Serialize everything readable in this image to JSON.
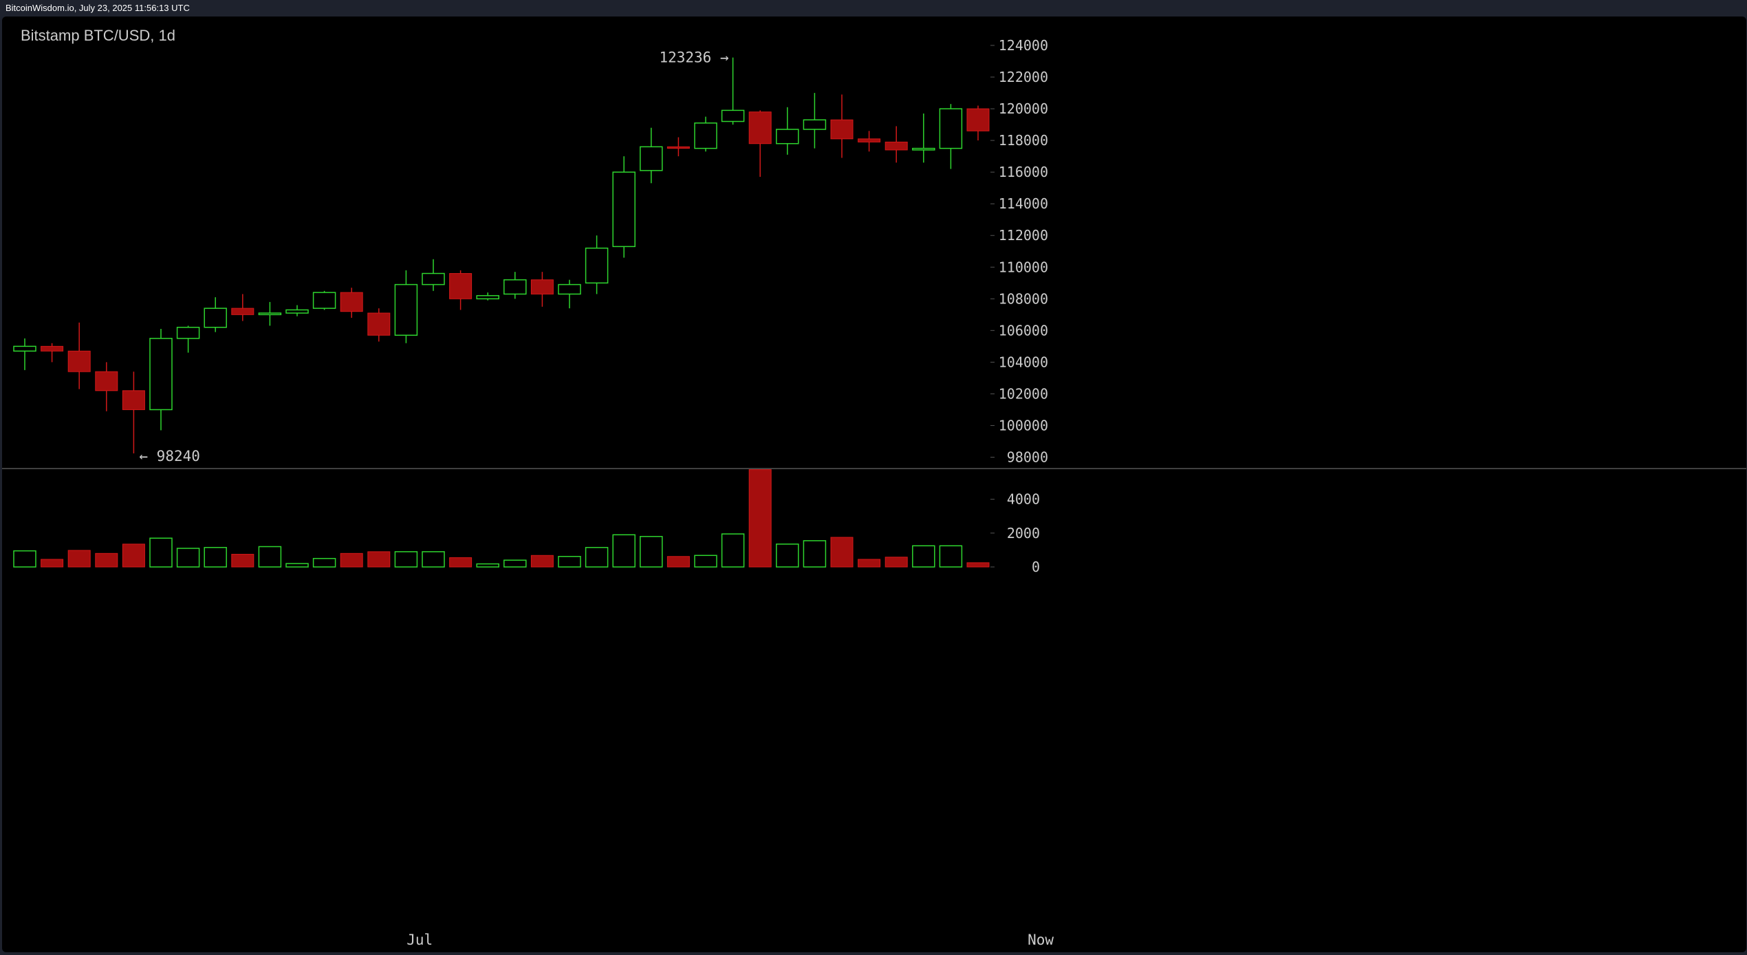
{
  "header": {
    "source": "BitcoinWisdom.io, July 23, 2025 11:56:13 UTC"
  },
  "chart_data": {
    "type": "candlestick",
    "title": "Bitstamp BTC/USD, 1d",
    "price_axis": {
      "min": 96500,
      "max": 125000,
      "ticks": [
        98000,
        100000,
        102000,
        104000,
        106000,
        108000,
        110000,
        112000,
        114000,
        116000,
        118000,
        120000,
        122000,
        124000
      ]
    },
    "volume_axis": {
      "min": 0,
      "max": 6300,
      "ticks": [
        0,
        2000,
        4000
      ]
    },
    "x_labels": [
      {
        "label": "Jul",
        "index": 14.5
      },
      {
        "label": "Now",
        "index": 37.3
      }
    ],
    "annotations": [
      {
        "text": "123236 →",
        "index": 26,
        "value": 123236,
        "side": "left"
      },
      {
        "text": "← 98240",
        "index": 4,
        "value": 98240,
        "side": "right"
      }
    ],
    "colors": {
      "up": "#2ed52e",
      "down": "#a50e0e",
      "down_wick": "#d21919",
      "text": "#cccccc",
      "grid_line": "#555555"
    },
    "candles": [
      {
        "o": 104700,
        "h": 105500,
        "l": 103500,
        "c": 105000,
        "v": 950
      },
      {
        "o": 105000,
        "h": 105200,
        "l": 104000,
        "c": 104700,
        "v": 450
      },
      {
        "o": 104700,
        "h": 106500,
        "l": 102300,
        "c": 103400,
        "v": 980
      },
      {
        "o": 103400,
        "h": 104000,
        "l": 100900,
        "c": 102200,
        "v": 800
      },
      {
        "o": 102200,
        "h": 103400,
        "l": 98240,
        "c": 101000,
        "v": 1350
      },
      {
        "o": 101000,
        "h": 106100,
        "l": 99700,
        "c": 105500,
        "v": 1700
      },
      {
        "o": 105500,
        "h": 106300,
        "l": 104600,
        "c": 106200,
        "v": 1100
      },
      {
        "o": 106200,
        "h": 108100,
        "l": 105900,
        "c": 107400,
        "v": 1150
      },
      {
        "o": 107400,
        "h": 108300,
        "l": 106600,
        "c": 107000,
        "v": 750
      },
      {
        "o": 107000,
        "h": 107800,
        "l": 106300,
        "c": 107100,
        "v": 1200
      },
      {
        "o": 107100,
        "h": 107600,
        "l": 106900,
        "c": 107300,
        "v": 200
      },
      {
        "o": 107400,
        "h": 108500,
        "l": 107300,
        "c": 108400,
        "v": 500
      },
      {
        "o": 108400,
        "h": 108700,
        "l": 106800,
        "c": 107200,
        "v": 800
      },
      {
        "o": 107100,
        "h": 107400,
        "l": 105300,
        "c": 105700,
        "v": 900
      },
      {
        "o": 105700,
        "h": 109800,
        "l": 105200,
        "c": 108900,
        "v": 900
      },
      {
        "o": 108900,
        "h": 110500,
        "l": 108500,
        "c": 109600,
        "v": 900
      },
      {
        "o": 109600,
        "h": 109800,
        "l": 107300,
        "c": 108000,
        "v": 550
      },
      {
        "o": 108000,
        "h": 108400,
        "l": 107900,
        "c": 108200,
        "v": 180
      },
      {
        "o": 108300,
        "h": 109700,
        "l": 108000,
        "c": 109200,
        "v": 400
      },
      {
        "o": 109200,
        "h": 109700,
        "l": 107500,
        "c": 108300,
        "v": 680
      },
      {
        "o": 108300,
        "h": 109200,
        "l": 107400,
        "c": 108900,
        "v": 620
      },
      {
        "o": 109000,
        "h": 112000,
        "l": 108300,
        "c": 111200,
        "v": 1150
      },
      {
        "o": 111300,
        "h": 117000,
        "l": 110600,
        "c": 116000,
        "v": 1900
      },
      {
        "o": 116100,
        "h": 118800,
        "l": 115300,
        "c": 117600,
        "v": 1800
      },
      {
        "o": 117600,
        "h": 118200,
        "l": 117000,
        "c": 117500,
        "v": 620
      },
      {
        "o": 117500,
        "h": 119500,
        "l": 117300,
        "c": 119100,
        "v": 680
      },
      {
        "o": 119200,
        "h": 123236,
        "l": 119000,
        "c": 119900,
        "v": 1950
      },
      {
        "o": 119800,
        "h": 119900,
        "l": 115700,
        "c": 117800,
        "v": 5750
      },
      {
        "o": 117800,
        "h": 120100,
        "l": 117100,
        "c": 118700,
        "v": 1350
      },
      {
        "o": 118700,
        "h": 121000,
        "l": 117500,
        "c": 119300,
        "v": 1550
      },
      {
        "o": 119300,
        "h": 120900,
        "l": 116900,
        "c": 118100,
        "v": 1750
      },
      {
        "o": 118100,
        "h": 118600,
        "l": 117300,
        "c": 117900,
        "v": 450
      },
      {
        "o": 117900,
        "h": 118900,
        "l": 116600,
        "c": 117400,
        "v": 580
      },
      {
        "o": 117400,
        "h": 119700,
        "l": 116600,
        "c": 117500,
        "v": 1250
      },
      {
        "o": 117500,
        "h": 120300,
        "l": 116200,
        "c": 120000,
        "v": 1250
      },
      {
        "o": 120000,
        "h": 120200,
        "l": 118000,
        "c": 118600,
        "v": 250
      }
    ]
  }
}
